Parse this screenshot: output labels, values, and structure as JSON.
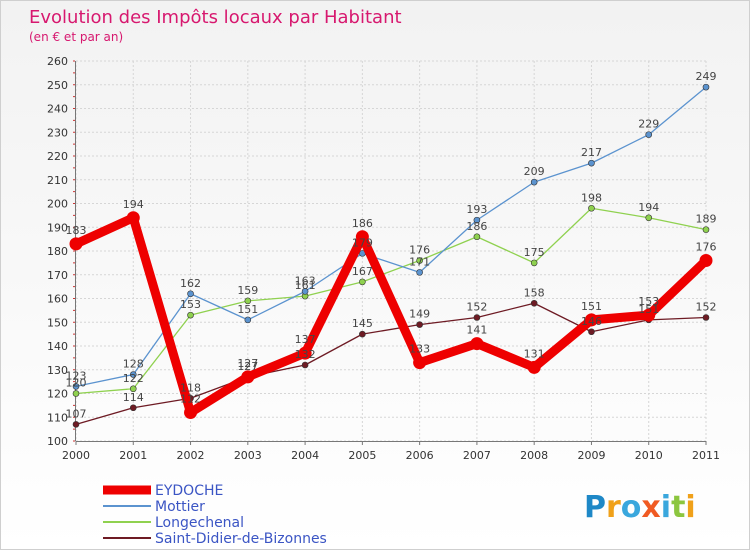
{
  "chart_data": {
    "type": "line",
    "title": "Evolution des Impôts locaux par Habitant",
    "subtitle": "(en € et par an)",
    "categories": [
      "2000",
      "2001",
      "2002",
      "2003",
      "2004",
      "2005",
      "2006",
      "2007",
      "2008",
      "2009",
      "2010",
      "2011"
    ],
    "ylim": [
      100,
      260
    ],
    "yticks": [
      100,
      110,
      120,
      130,
      140,
      150,
      160,
      170,
      180,
      190,
      200,
      210,
      220,
      230,
      240,
      250,
      260
    ],
    "grid": true,
    "legend": "bottom-left",
    "series": [
      {
        "name": "Saint-Didier-de-Bizonnes",
        "color": "#6e1b24",
        "values": [
          107,
          114,
          118,
          127,
          132,
          145,
          149,
          152,
          158,
          146,
          151,
          152
        ]
      },
      {
        "name": "Longechenal",
        "color": "#8fd14f",
        "values": [
          120,
          122,
          153,
          159,
          161,
          167,
          176,
          186,
          175,
          198,
          194,
          189
        ]
      },
      {
        "name": "Mottier",
        "color": "#5b93cf",
        "values": [
          123,
          128,
          162,
          151,
          163,
          179,
          171,
          193,
          209,
          217,
          229,
          249
        ]
      },
      {
        "name": "EYDOCHE",
        "color": "#ee0000",
        "values": [
          183,
          194,
          112,
          127,
          137,
          186,
          133,
          141,
          131,
          151,
          153,
          176
        ]
      }
    ],
    "legend_order": [
      "EYDOCHE",
      "Mottier",
      "Longechenal",
      "Saint-Didier-de-Bizonnes"
    ]
  },
  "logo": {
    "letters": [
      "P",
      "r",
      "o",
      "x",
      "i",
      "t",
      "i"
    ],
    "colors": [
      "#1e88c7",
      "#f0a11a",
      "#3aa7dd",
      "#f05a22",
      "#3aa7dd",
      "#8cc63f",
      "#f0a11a"
    ]
  }
}
